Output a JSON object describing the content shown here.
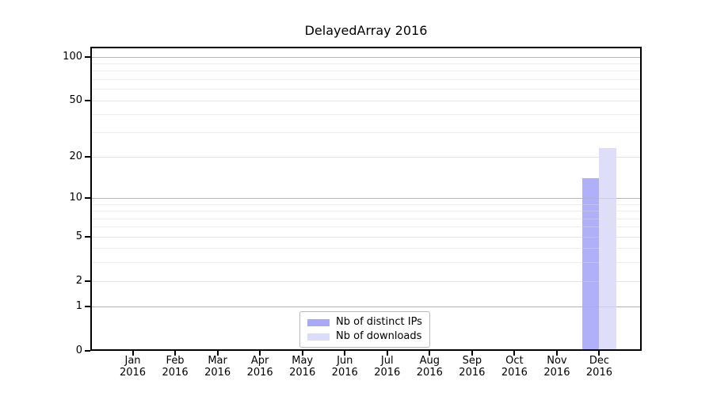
{
  "figure": {
    "title": "DelayedArray 2016"
  },
  "chart_data": {
    "type": "bar",
    "title": "DelayedArray 2016",
    "xlabel": "",
    "ylabel": "",
    "categories": [
      "Jan 2016",
      "Feb 2016",
      "Mar 2016",
      "Apr 2016",
      "May 2016",
      "Jun 2016",
      "Jul 2016",
      "Aug 2016",
      "Sep 2016",
      "Oct 2016",
      "Nov 2016",
      "Dec 2016"
    ],
    "series": [
      {
        "name": "Nb of distinct IPs",
        "color": "#a9a9f8",
        "values": [
          0,
          0,
          0,
          0,
          0,
          0,
          0,
          0,
          0,
          0,
          0,
          14
        ]
      },
      {
        "name": "Nb of downloads",
        "color": "#dbdbfa",
        "values": [
          0,
          0,
          0,
          0,
          0,
          0,
          0,
          0,
          0,
          0,
          0,
          23
        ]
      }
    ],
    "y_axis": {
      "scale": "log1p",
      "min": 0,
      "max": 117,
      "major_ticks": [
        0,
        1,
        2,
        5,
        10,
        20,
        50,
        100
      ],
      "decade_ticks": [
        1,
        10,
        100
      ],
      "minor_gridlines": [
        3,
        4,
        6,
        7,
        8,
        9,
        30,
        40,
        60,
        70,
        80,
        90
      ]
    },
    "grid": "horizontal",
    "legend_position": "lower center"
  },
  "colors": {
    "background": "#ffffff",
    "axis_frame": "#000000",
    "grid_minor": "#ededed",
    "grid_major_light": "#e4e4e4",
    "grid_decade": "#b4b4b4",
    "bar_distinct_ips": "#a9a9f8",
    "bar_downloads": "#dbdbfa",
    "legend_border": "#b9b9b9",
    "text": "#000000"
  }
}
